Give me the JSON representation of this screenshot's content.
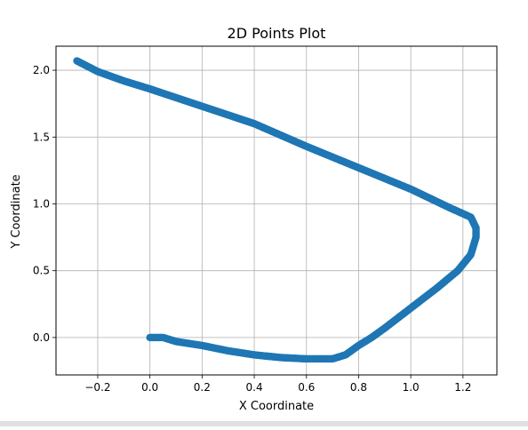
{
  "chart_data": {
    "type": "scatter",
    "title": "2D Points Plot",
    "xlabel": "X Coordinate",
    "ylabel": "Y Coordinate",
    "xlim": [
      -0.36,
      1.33
    ],
    "ylim": [
      -0.28,
      2.18
    ],
    "xticks": [
      -0.2,
      0.0,
      0.2,
      0.4,
      0.6,
      0.8,
      1.0,
      1.2
    ],
    "xtick_labels": [
      "−0.2",
      "0.0",
      "0.2",
      "0.4",
      "0.6",
      "0.8",
      "1.0",
      "1.2"
    ],
    "yticks": [
      0.0,
      0.5,
      1.0,
      1.5,
      2.0
    ],
    "ytick_labels": [
      "0.0",
      "0.5",
      "1.0",
      "1.5",
      "2.0"
    ],
    "grid": true,
    "marker_color": "#1f77b4",
    "series": [
      {
        "x": [
          0.0,
          0.05,
          0.1,
          0.2,
          0.3,
          0.4,
          0.5,
          0.6,
          0.7,
          0.75,
          0.8,
          0.85,
          0.9,
          1.0,
          1.1,
          1.18,
          1.23,
          1.25,
          1.25,
          1.23,
          1.15,
          1.0,
          0.8,
          0.6,
          0.4,
          0.2,
          0.0,
          -0.1,
          -0.2,
          -0.28
        ],
        "y": [
          0.0,
          0.0,
          -0.03,
          -0.06,
          -0.1,
          -0.13,
          -0.15,
          -0.16,
          -0.16,
          -0.13,
          -0.06,
          0.0,
          0.07,
          0.22,
          0.37,
          0.5,
          0.62,
          0.75,
          0.82,
          0.9,
          0.97,
          1.11,
          1.27,
          1.43,
          1.6,
          1.73,
          1.86,
          1.92,
          1.99,
          2.07
        ]
      }
    ]
  }
}
